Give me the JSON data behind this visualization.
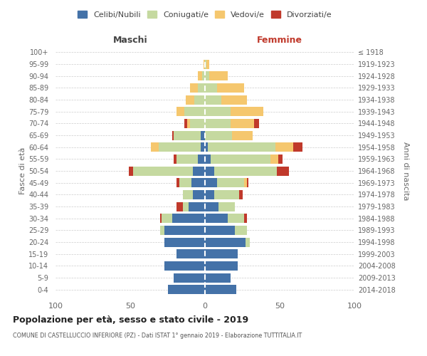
{
  "age_groups": [
    "0-4",
    "5-9",
    "10-14",
    "15-19",
    "20-24",
    "25-29",
    "30-34",
    "35-39",
    "40-44",
    "45-49",
    "50-54",
    "55-59",
    "60-64",
    "65-69",
    "70-74",
    "75-79",
    "80-84",
    "85-89",
    "90-94",
    "95-99",
    "100+"
  ],
  "birth_years": [
    "2014-2018",
    "2009-2013",
    "2004-2008",
    "1999-2003",
    "1994-1998",
    "1989-1993",
    "1984-1988",
    "1979-1983",
    "1974-1978",
    "1969-1973",
    "1964-1968",
    "1959-1963",
    "1954-1958",
    "1949-1953",
    "1944-1948",
    "1939-1943",
    "1934-1938",
    "1929-1933",
    "1924-1928",
    "1919-1923",
    "≤ 1918"
  ],
  "males": {
    "celibi": [
      25,
      21,
      27,
      19,
      27,
      27,
      22,
      11,
      8,
      9,
      8,
      5,
      3,
      3,
      0,
      0,
      0,
      0,
      0,
      0,
      0
    ],
    "coniugati": [
      0,
      0,
      0,
      0,
      0,
      3,
      7,
      4,
      7,
      8,
      40,
      14,
      28,
      18,
      10,
      14,
      7,
      5,
      2,
      0,
      0
    ],
    "vedovi": [
      0,
      0,
      0,
      0,
      0,
      0,
      0,
      0,
      0,
      0,
      0,
      0,
      5,
      0,
      2,
      5,
      6,
      5,
      3,
      1,
      0
    ],
    "divorziati": [
      0,
      0,
      0,
      0,
      0,
      0,
      1,
      4,
      0,
      2,
      3,
      2,
      0,
      1,
      2,
      0,
      0,
      0,
      0,
      0,
      0
    ]
  },
  "females": {
    "nubili": [
      21,
      17,
      22,
      22,
      27,
      20,
      15,
      9,
      6,
      8,
      6,
      4,
      2,
      0,
      0,
      0,
      0,
      0,
      0,
      0,
      0
    ],
    "coniugate": [
      0,
      0,
      0,
      0,
      3,
      8,
      11,
      11,
      17,
      18,
      42,
      40,
      45,
      18,
      17,
      17,
      11,
      8,
      3,
      1,
      0
    ],
    "vedove": [
      0,
      0,
      0,
      0,
      0,
      0,
      0,
      0,
      0,
      2,
      0,
      5,
      12,
      14,
      16,
      22,
      17,
      18,
      12,
      2,
      0
    ],
    "divorziate": [
      0,
      0,
      0,
      0,
      0,
      0,
      2,
      0,
      2,
      1,
      8,
      3,
      6,
      0,
      3,
      0,
      0,
      0,
      0,
      0,
      0
    ]
  },
  "colors": {
    "celibi": "#4472a8",
    "coniugati": "#c5d9a0",
    "vedovi": "#f5c76e",
    "divorziati": "#c0392b"
  },
  "xlim": 100,
  "title": "Popolazione per età, sesso e stato civile - 2019",
  "subtitle": "COMUNE DI CASTELLUCCIO INFERIORE (PZ) - Dati ISTAT 1° gennaio 2019 - Elaborazione TUTTITALIA.IT",
  "ylabel_left": "Fasce di età",
  "ylabel_right": "Anni di nascita",
  "legend_labels": [
    "Celibi/Nubili",
    "Coniugati/e",
    "Vedovi/e",
    "Divorziati/e"
  ],
  "maschi_label": "Maschi",
  "femmine_label": "Femmine"
}
